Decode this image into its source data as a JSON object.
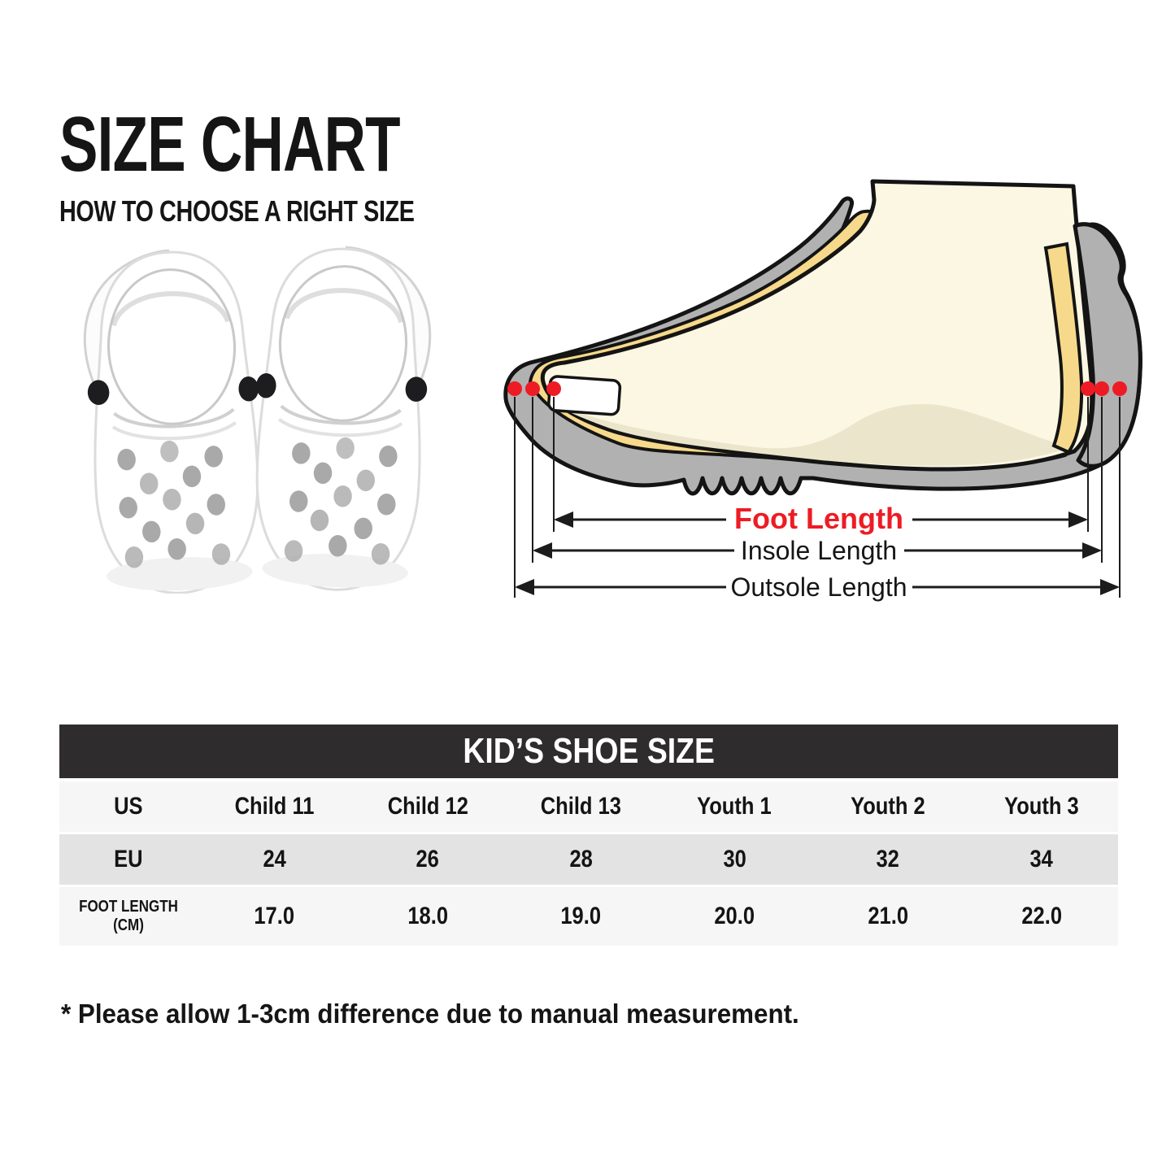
{
  "page": {
    "title": "SIZE CHART",
    "subtitle": "HOW TO CHOOSE A RIGHT SIZE",
    "note": "* Please allow 1-3cm difference due to manual measurement."
  },
  "diagram": {
    "labels": {
      "foot": "Foot Length",
      "insole": "Insole Length",
      "outsole": "Outsole Length"
    },
    "colors": {
      "accent_red": "#ed1c24",
      "shoe_gray": "#b1b1b1",
      "insole_yellow": "#f6d98a",
      "foot_cream": "#fbf7e3",
      "foot_shade": "#ebe6cb",
      "outline_black": "#141414"
    }
  },
  "table": {
    "title": "KID’S SHOE SIZE",
    "header_bg": "#2e2c2d",
    "row_light": "#f6f6f6",
    "row_gray": "#e3e3e3",
    "rows": [
      {
        "label": "US",
        "values": [
          "Child 11",
          "Child 12",
          "Child 13",
          "Youth 1",
          "Youth 2",
          "Youth 3"
        ]
      },
      {
        "label": "EU",
        "values": [
          "24",
          "26",
          "28",
          "30",
          "32",
          "34"
        ]
      },
      {
        "label": "FOOT LENGTH (CM)",
        "values": [
          "17.0",
          "18.0",
          "19.0",
          "20.0",
          "21.0",
          "22.0"
        ]
      }
    ]
  }
}
